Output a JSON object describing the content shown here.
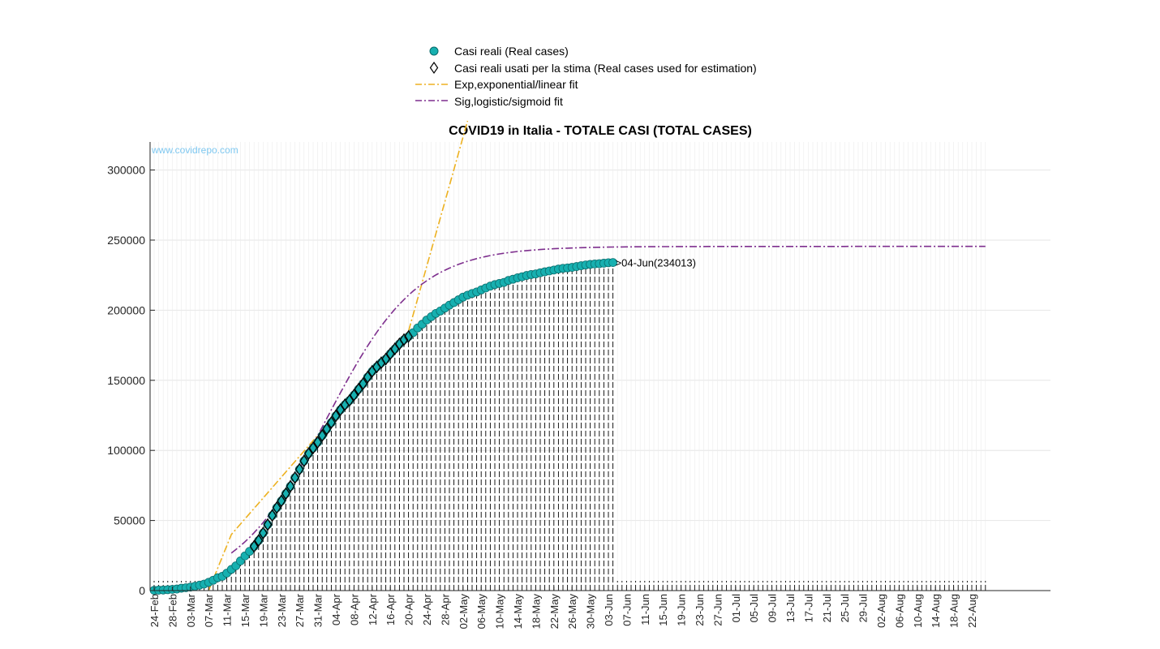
{
  "chart_data": {
    "type": "line",
    "title": "COVID19 in Italia - TOTALE CASI (TOTAL CASES)",
    "watermark": "www.covidrepo.com",
    "xlabel": "",
    "ylabel": "",
    "ylim": [
      0,
      320000
    ],
    "yticks": [
      0,
      50000,
      100000,
      150000,
      200000,
      250000,
      300000
    ],
    "x_start": "24-Feb",
    "x_end": "25-Aug",
    "xticks": [
      "24-Feb",
      "28-Feb",
      "03-Mar",
      "07-Mar",
      "11-Mar",
      "15-Mar",
      "19-Mar",
      "23-Mar",
      "27-Mar",
      "31-Mar",
      "04-Apr",
      "08-Apr",
      "12-Apr",
      "16-Apr",
      "20-Apr",
      "24-Apr",
      "28-Apr",
      "02-May",
      "06-May",
      "10-May",
      "14-May",
      "18-May",
      "22-May",
      "26-May",
      "30-May",
      "03-Jun",
      "07-Jun",
      "11-Jun",
      "15-Jun",
      "19-Jun",
      "23-Jun",
      "27-Jun",
      "01-Jul",
      "05-Jul",
      "09-Jul",
      "13-Jul",
      "17-Jul",
      "21-Jul",
      "25-Jul",
      "29-Jul",
      "02-Aug",
      "06-Aug",
      "10-Aug",
      "14-Aug",
      "18-Aug",
      "22-Aug"
    ],
    "grid": true,
    "legend_position": "top-center",
    "legend": [
      {
        "label": "Casi reali (Real cases)",
        "marker": "circle",
        "color": "#17b0b0"
      },
      {
        "label": "Casi reali usati per la stima (Real cases used for estimation)",
        "marker": "diamond",
        "color": "#000000"
      },
      {
        "label": "Exp,exponential/linear fit",
        "style": "dashdot",
        "color": "#edb120"
      },
      {
        "label": "Sig,logistic/sigmoid fit",
        "style": "dashdot",
        "color": "#7e2f8e"
      }
    ],
    "annotation": ">04-Jun(234013)",
    "series": [
      {
        "name": "Casi reali (Real cases)",
        "start_date": "24-Feb",
        "values": [
          229,
          322,
          400,
          650,
          888,
          1128,
          1694,
          2036,
          2502,
          3089,
          3858,
          4636,
          5883,
          7375,
          9172,
          10149,
          12462,
          15113,
          17660,
          21157,
          24747,
          27980,
          31506,
          35713,
          41035,
          47021,
          53578,
          59138,
          63927,
          69176,
          74386,
          80539,
          86498,
          92472,
          97689,
          101739,
          105792,
          110574,
          115242,
          119827,
          124632,
          128948,
          132547,
          135586,
          139422,
          143626,
          147577,
          152271,
          156363,
          159516,
          162488,
          165155,
          168941,
          172434,
          175925,
          178972,
          181228,
          183957,
          187327,
          189973,
          192994,
          195351,
          197675,
          199414,
          201505,
          203591,
          205463,
          207428,
          209328,
          210717,
          211938,
          213013,
          214457,
          215858,
          217185,
          218268,
          219070,
          219814,
          221216,
          222104,
          223096,
          223885,
          224760,
          225435,
          225886,
          226699,
          227364,
          228006,
          228658,
          229327,
          229858,
          230158,
          230555,
          231139,
          231732,
          232248,
          232664,
          232997,
          233197,
          233515,
          233836,
          234013
        ]
      },
      {
        "name": "Casi reali usati per la stima (Real cases used for estimation)",
        "start_index": 22,
        "end_index": 56
      },
      {
        "name": "Exp,exponential/linear fit",
        "points": [
          [
            12,
            0
          ],
          [
            17,
            40000
          ],
          [
            56,
            185000
          ],
          [
            69,
            335000
          ]
        ]
      },
      {
        "name": "Sig,logistic/sigmoid fit",
        "K": 245500,
        "r": 0.1,
        "t0": 38,
        "start_index": 17,
        "end_index": 183
      }
    ]
  }
}
